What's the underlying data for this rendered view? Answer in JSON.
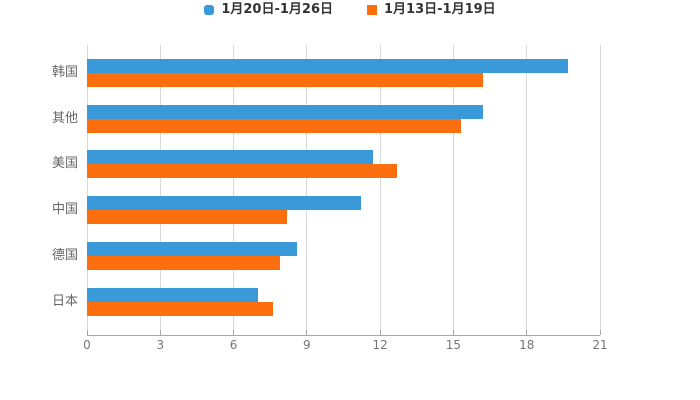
{
  "legend": {
    "items": [
      {
        "label": "1月20日-1月26日",
        "color": "#3a99d8",
        "shape": "round"
      },
      {
        "label": "1月13日-1月19日",
        "color": "#fd6e0e",
        "shape": "square"
      }
    ]
  },
  "chart_data": {
    "type": "bar",
    "orientation": "horizontal",
    "title": "",
    "xlabel": "",
    "ylabel": "",
    "categories": [
      "韩国",
      "其他",
      "美国",
      "中国",
      "德国",
      "日本"
    ],
    "series": [
      {
        "name": "1月20日-1月26日",
        "color": "#3a99d8",
        "values": [
          19.7,
          16.2,
          11.7,
          11.2,
          8.6,
          7.0
        ]
      },
      {
        "name": "1月13日-1月19日",
        "color": "#fd6e0e",
        "values": [
          16.2,
          15.3,
          12.7,
          8.2,
          7.9,
          7.6
        ]
      }
    ],
    "xlim": [
      0,
      21
    ],
    "x_ticks": [
      "0",
      "3",
      "6",
      "9",
      "12",
      "15",
      "18",
      "21"
    ],
    "grid": true,
    "legend_position": "top",
    "colors": {
      "grid": "#d9d9d9",
      "axis": "#a6a6a6",
      "tick_label": "#767676",
      "category_label": "#666666",
      "legend_text": "#333333"
    }
  }
}
